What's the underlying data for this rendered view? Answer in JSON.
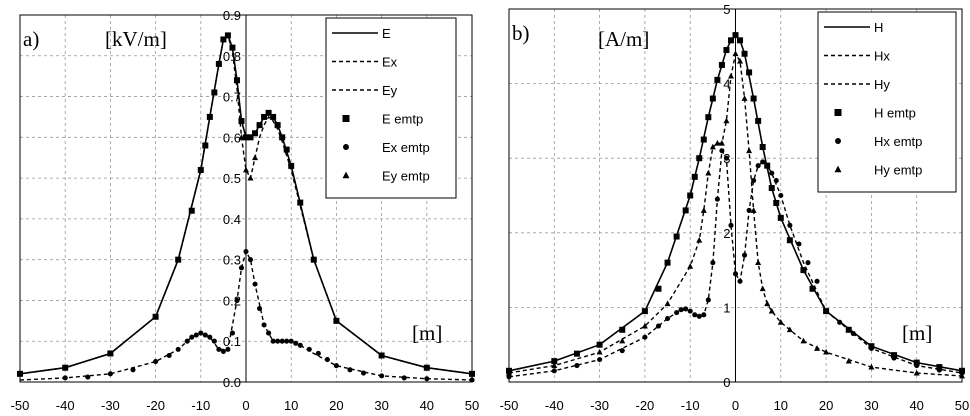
{
  "chart_data": [
    {
      "type": "line",
      "panel_label": "a)",
      "unit_label": "[kV/m]",
      "x_unit_label": "[m]",
      "xlim": [
        -50,
        50
      ],
      "ylim": [
        0,
        0.9
      ],
      "xticks": [
        "-50",
        "-40",
        "-30",
        "-20",
        "-10",
        "0",
        "10",
        "20",
        "30",
        "40",
        "50"
      ],
      "yticks": [
        "0.0",
        "0.1",
        "0.2",
        "0.3",
        "0.4",
        "0.5",
        "0.6",
        "0.7",
        "0.8",
        "0.9"
      ],
      "grid": true,
      "legend_position": "top-right",
      "series": [
        {
          "name": "E",
          "style": "solid",
          "x": [
            -50,
            -40,
            -30,
            -20,
            -15,
            -10,
            -8,
            -6,
            -5,
            -4,
            -3,
            -2,
            -1,
            0,
            1,
            2,
            3,
            4,
            5,
            6,
            7,
            8,
            10,
            15,
            20,
            30,
            40,
            50
          ],
          "y": [
            0.02,
            0.035,
            0.07,
            0.16,
            0.3,
            0.52,
            0.65,
            0.78,
            0.84,
            0.85,
            0.82,
            0.74,
            0.64,
            0.6,
            0.6,
            0.61,
            0.63,
            0.65,
            0.66,
            0.65,
            0.63,
            0.6,
            0.53,
            0.3,
            0.15,
            0.065,
            0.035,
            0.02
          ]
        },
        {
          "name": "Ex",
          "style": "dashed",
          "x": [
            -50,
            -40,
            -30,
            -20,
            -15,
            -12,
            -10,
            -8,
            -6,
            -4,
            -2,
            -1,
            0,
            1,
            2,
            4,
            6,
            8,
            10,
            12,
            15,
            20,
            30,
            40,
            50
          ],
          "y": [
            0.005,
            0.01,
            0.02,
            0.05,
            0.08,
            0.11,
            0.12,
            0.11,
            0.08,
            0.08,
            0.2,
            0.28,
            0.32,
            0.3,
            0.24,
            0.14,
            0.1,
            0.1,
            0.1,
            0.09,
            0.07,
            0.04,
            0.015,
            0.008,
            0.005
          ]
        },
        {
          "name": "Ey",
          "style": "dashed",
          "x": [
            -50,
            -40,
            -30,
            -20,
            -15,
            -10,
            -8,
            -6,
            -5,
            -4,
            -3,
            -2,
            -1,
            0,
            1,
            2,
            3,
            4,
            5,
            6,
            7,
            8,
            10,
            15,
            20,
            30,
            40,
            50
          ],
          "y": [
            0.02,
            0.035,
            0.07,
            0.16,
            0.3,
            0.52,
            0.65,
            0.78,
            0.84,
            0.85,
            0.81,
            0.72,
            0.6,
            0.52,
            0.5,
            0.55,
            0.6,
            0.63,
            0.65,
            0.64,
            0.62,
            0.59,
            0.52,
            0.3,
            0.15,
            0.065,
            0.035,
            0.02
          ]
        },
        {
          "name": "E emtp",
          "marker": "square",
          "x": [
            -50,
            -40,
            -30,
            -20,
            -15,
            -12,
            -10,
            -9,
            -8,
            -7,
            -6,
            -5,
            -4,
            -3,
            -2,
            -1,
            0,
            1,
            2,
            3,
            4,
            5,
            6,
            7,
            8,
            9,
            10,
            12,
            15,
            20,
            30,
            40,
            50
          ],
          "y": [
            0.02,
            0.035,
            0.07,
            0.16,
            0.3,
            0.42,
            0.52,
            0.58,
            0.65,
            0.71,
            0.78,
            0.84,
            0.85,
            0.82,
            0.74,
            0.64,
            0.6,
            0.6,
            0.61,
            0.63,
            0.65,
            0.66,
            0.65,
            0.63,
            0.6,
            0.57,
            0.53,
            0.44,
            0.3,
            0.15,
            0.065,
            0.035,
            0.02
          ]
        },
        {
          "name": "Ex emtp",
          "marker": "circle",
          "x": [
            -40,
            -35,
            -30,
            -25,
            -20,
            -17,
            -15,
            -13,
            -12,
            -11,
            -10,
            -9,
            -8,
            -7,
            -6,
            -5,
            -4,
            -3,
            -2,
            -1,
            0,
            1,
            2,
            3,
            4,
            5,
            6,
            7,
            8,
            9,
            10,
            11,
            12,
            14,
            16,
            18,
            20,
            23,
            26,
            30,
            35,
            40,
            50
          ],
          "y": [
            0.01,
            0.012,
            0.02,
            0.03,
            0.05,
            0.065,
            0.08,
            0.1,
            0.11,
            0.115,
            0.12,
            0.115,
            0.11,
            0.1,
            0.08,
            0.075,
            0.08,
            0.12,
            0.2,
            0.28,
            0.32,
            0.3,
            0.24,
            0.18,
            0.14,
            0.12,
            0.1,
            0.1,
            0.1,
            0.1,
            0.1,
            0.095,
            0.09,
            0.08,
            0.07,
            0.055,
            0.04,
            0.03,
            0.022,
            0.015,
            0.01,
            0.008,
            0.005
          ]
        },
        {
          "name": "Ey emtp",
          "marker": "triangle",
          "x": [
            -1,
            0,
            1,
            2
          ],
          "y": [
            0.6,
            0.52,
            0.5,
            0.55
          ]
        }
      ]
    },
    {
      "type": "line",
      "panel_label": "b)",
      "unit_label": "[A/m]",
      "x_unit_label": "[m]",
      "xlim": [
        -50,
        50
      ],
      "ylim": [
        0,
        5
      ],
      "xticks": [
        "-50",
        "-40",
        "-30",
        "-20",
        "-10",
        "0",
        "10",
        "20",
        "30",
        "40",
        "50"
      ],
      "yticks": [
        "0",
        "1",
        "2",
        "3",
        "4",
        "5"
      ],
      "grid": true,
      "legend_position": "top-right",
      "series": [
        {
          "name": "H",
          "style": "solid",
          "x": [
            -50,
            -40,
            -30,
            -20,
            -15,
            -10,
            -8,
            -6,
            -4,
            -2,
            -1,
            0,
            1,
            2,
            4,
            6,
            8,
            10,
            15,
            20,
            30,
            40,
            50
          ],
          "y": [
            0.15,
            0.28,
            0.5,
            0.95,
            1.6,
            2.5,
            3.0,
            3.55,
            4.05,
            4.45,
            4.58,
            4.65,
            4.58,
            4.4,
            3.8,
            3.15,
            2.6,
            2.2,
            1.5,
            0.95,
            0.48,
            0.26,
            0.15
          ]
        },
        {
          "name": "Hx",
          "style": "dashed",
          "x": [
            -50,
            -40,
            -30,
            -20,
            -15,
            -12,
            -10,
            -8,
            -7,
            -6,
            -5,
            -4,
            -3,
            -2,
            -1,
            0,
            1,
            2,
            3,
            4,
            5,
            6,
            7,
            8,
            10,
            12,
            15,
            20,
            30,
            40,
            50
          ],
          "y": [
            0.07,
            0.15,
            0.3,
            0.6,
            0.85,
            0.97,
            0.95,
            0.88,
            0.9,
            1.1,
            1.6,
            2.45,
            3.1,
            3.0,
            2.1,
            1.45,
            1.35,
            1.7,
            2.3,
            2.7,
            2.9,
            2.95,
            2.9,
            2.8,
            2.5,
            2.1,
            1.6,
            0.95,
            0.45,
            0.22,
            0.12
          ]
        },
        {
          "name": "Hy",
          "style": "dashed",
          "x": [
            -50,
            -40,
            -30,
            -20,
            -15,
            -10,
            -8,
            -7,
            -6,
            -5,
            -4,
            -3,
            -2,
            -1,
            0,
            1,
            2,
            3,
            4,
            5,
            6,
            7,
            8,
            10,
            12,
            15,
            20,
            30,
            40,
            50
          ],
          "y": [
            0.12,
            0.22,
            0.4,
            0.75,
            1.05,
            1.55,
            1.9,
            2.3,
            2.8,
            3.15,
            3.2,
            3.2,
            3.5,
            4.1,
            4.4,
            4.3,
            3.8,
            3.1,
            2.3,
            1.6,
            1.25,
            1.05,
            0.95,
            0.8,
            0.7,
            0.55,
            0.4,
            0.2,
            0.12,
            0.08
          ]
        },
        {
          "name": "H emtp",
          "marker": "square",
          "x": [
            -50,
            -40,
            -35,
            -30,
            -25,
            -20,
            -17,
            -15,
            -13,
            -11,
            -10,
            -9,
            -8,
            -7,
            -6,
            -5,
            -4,
            -3,
            -2,
            -1,
            0,
            1,
            2,
            3,
            4,
            5,
            6,
            7,
            8,
            9,
            10,
            12,
            15,
            17,
            20,
            25,
            30,
            35,
            40,
            45,
            50
          ],
          "y": [
            0.15,
            0.28,
            0.38,
            0.5,
            0.7,
            0.95,
            1.25,
            1.6,
            1.95,
            2.3,
            2.5,
            2.75,
            3.0,
            3.25,
            3.55,
            3.8,
            4.05,
            4.25,
            4.45,
            4.58,
            4.65,
            4.58,
            4.4,
            4.15,
            3.8,
            3.5,
            3.15,
            2.9,
            2.6,
            2.4,
            2.2,
            1.9,
            1.5,
            1.25,
            0.95,
            0.7,
            0.48,
            0.36,
            0.26,
            0.2,
            0.15
          ]
        },
        {
          "name": "Hx emtp",
          "marker": "circle",
          "x": [
            -50,
            -40,
            -35,
            -30,
            -25,
            -20,
            -17,
            -15,
            -13,
            -12,
            -11,
            -10,
            -9,
            -8,
            -7,
            -6,
            -5,
            -4,
            -3,
            -2,
            -1,
            0,
            1,
            2,
            3,
            4,
            5,
            6,
            7,
            8,
            9,
            10,
            12,
            14,
            16,
            18,
            20,
            23,
            26,
            30,
            35,
            40,
            45,
            50
          ],
          "y": [
            0.07,
            0.15,
            0.22,
            0.3,
            0.42,
            0.6,
            0.75,
            0.85,
            0.93,
            0.97,
            0.98,
            0.95,
            0.9,
            0.88,
            0.9,
            1.1,
            1.6,
            2.45,
            3.1,
            3.0,
            2.1,
            1.45,
            1.35,
            1.7,
            2.3,
            2.7,
            2.9,
            2.95,
            2.9,
            2.8,
            2.7,
            2.5,
            2.1,
            1.85,
            1.6,
            1.35,
            0.95,
            0.8,
            0.65,
            0.45,
            0.32,
            0.22,
            0.16,
            0.12
          ]
        },
        {
          "name": "Hy emtp",
          "marker": "triangle",
          "x": [
            -50,
            -40,
            -30,
            -25,
            -20,
            -15,
            -10,
            -8,
            -7,
            -6,
            -5,
            -4,
            -3,
            -2,
            -1,
            0,
            1,
            2,
            3,
            4,
            5,
            6,
            7,
            8,
            10,
            12,
            15,
            18,
            20,
            25,
            30,
            40,
            50
          ],
          "y": [
            0.12,
            0.22,
            0.4,
            0.55,
            0.75,
            1.05,
            1.55,
            1.9,
            2.3,
            2.8,
            3.15,
            3.2,
            3.2,
            3.5,
            4.1,
            4.4,
            4.3,
            3.8,
            3.1,
            2.3,
            1.6,
            1.25,
            1.05,
            0.95,
            0.8,
            0.7,
            0.55,
            0.45,
            0.4,
            0.28,
            0.2,
            0.12,
            0.08
          ]
        }
      ]
    }
  ]
}
